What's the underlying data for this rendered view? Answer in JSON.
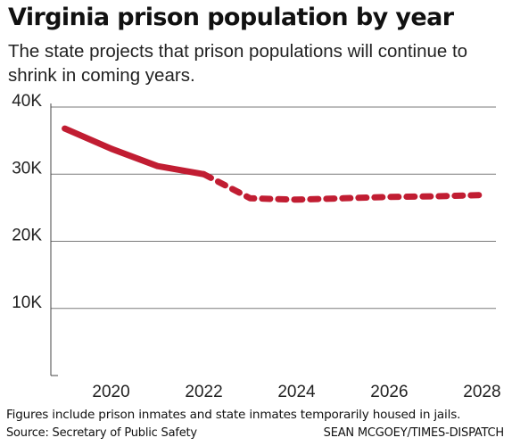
{
  "header": {
    "title": "Virginia prison population by year",
    "subtitle": "The state projects that prison populations will continue to shrink in coming years."
  },
  "footer": {
    "note": "Figures include prison inmates and state inmates temporarily housed in jails.",
    "source": "Source: Secretary of Public Safety",
    "credit": "SEAN MCGOEY/TIMES-DISPATCH"
  },
  "colors": {
    "series": "#c11d32",
    "grid": "#7a7a7a",
    "axis": "#444444"
  },
  "chart_data": {
    "type": "line",
    "title": "Virginia prison population by year",
    "xlabel": "",
    "ylabel": "",
    "xlim": [
      2018.7,
      2028.3
    ],
    "ylim": [
      0,
      40000
    ],
    "grid": true,
    "x_ticks": [
      2020,
      2022,
      2024,
      2026,
      2028
    ],
    "x_tick_labels": [
      "2020",
      "2022",
      "2024",
      "2026",
      "2028"
    ],
    "y_ticks": [
      10000,
      20000,
      30000,
      40000
    ],
    "y_tick_labels": [
      "10K",
      "20K",
      "30K",
      "40K"
    ],
    "series": [
      {
        "style": "solid",
        "x": [
          2019,
          2020,
          2021,
          2022
        ],
        "y": [
          36800,
          33800,
          31200,
          30000
        ]
      },
      {
        "style": "dashed",
        "x": [
          2022,
          2023,
          2024,
          2025,
          2026,
          2027,
          2028
        ],
        "y": [
          30000,
          26400,
          26200,
          26400,
          26600,
          26700,
          26900
        ]
      }
    ]
  }
}
